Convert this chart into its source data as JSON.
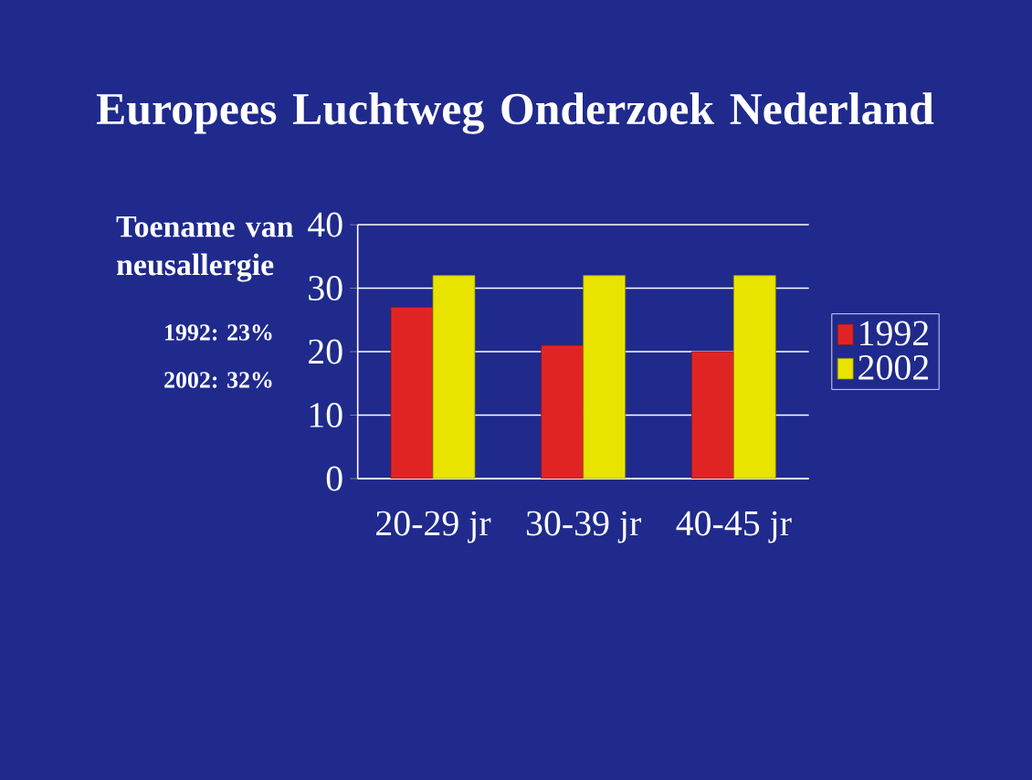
{
  "chart_data": {
    "type": "bar",
    "title": "Europees Luchtweg Onderzoek Nederland",
    "annotations": [
      "Toename van neusallergie",
      "1992: 23%",
      "2002: 32%"
    ],
    "categories": [
      "20-29 jr",
      "30-39 jr",
      "40-45 jr"
    ],
    "series": [
      {
        "name": "1992",
        "color": "#e02424",
        "values": [
          27,
          21,
          20
        ]
      },
      {
        "name": "2002",
        "color": "#e8e400",
        "values": [
          32,
          32,
          32
        ]
      }
    ],
    "ylim": [
      0,
      40
    ],
    "yticks": [
      0,
      10,
      20,
      30,
      40
    ],
    "grid": "y",
    "legend": "right"
  }
}
